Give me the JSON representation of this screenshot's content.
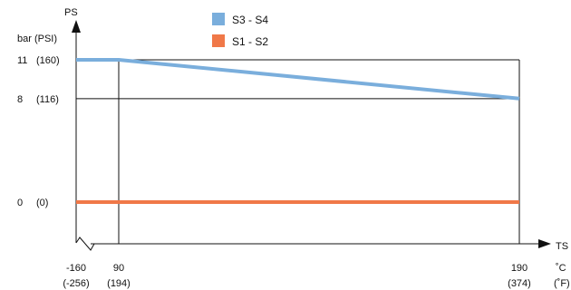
{
  "chart_data": {
    "type": "line",
    "x_axis": {
      "label": "TS",
      "unit_c": "˚C",
      "unit_f": "(˚F)",
      "ticks": [
        {
          "value": -160,
          "label_c": "-160",
          "label_f": "(-256)"
        },
        {
          "value": 90,
          "label_c": "90",
          "label_f": "(194)"
        },
        {
          "value": 190,
          "label_c": "190",
          "label_f": "(374)"
        }
      ]
    },
    "y_axis": {
      "label": "PS",
      "unit": "bar (PSI)",
      "ticks": [
        {
          "value": 11,
          "label": "11",
          "label_psi": "(160)"
        },
        {
          "value": 8,
          "label": "8",
          "label_psi": "(116)"
        },
        {
          "value": 0,
          "label": "0",
          "label_psi": "(0)"
        }
      ]
    },
    "series": [
      {
        "name": "S3 - S4",
        "color": "#7aaedc",
        "points": [
          [
            -160,
            11
          ],
          [
            90,
            11
          ],
          [
            190,
            8
          ]
        ]
      },
      {
        "name": "S1 - S2",
        "color": "#f07848",
        "points": [
          [
            -160,
            0
          ],
          [
            190,
            0
          ]
        ]
      }
    ],
    "legend_position": "top-center",
    "axis_break": true
  }
}
